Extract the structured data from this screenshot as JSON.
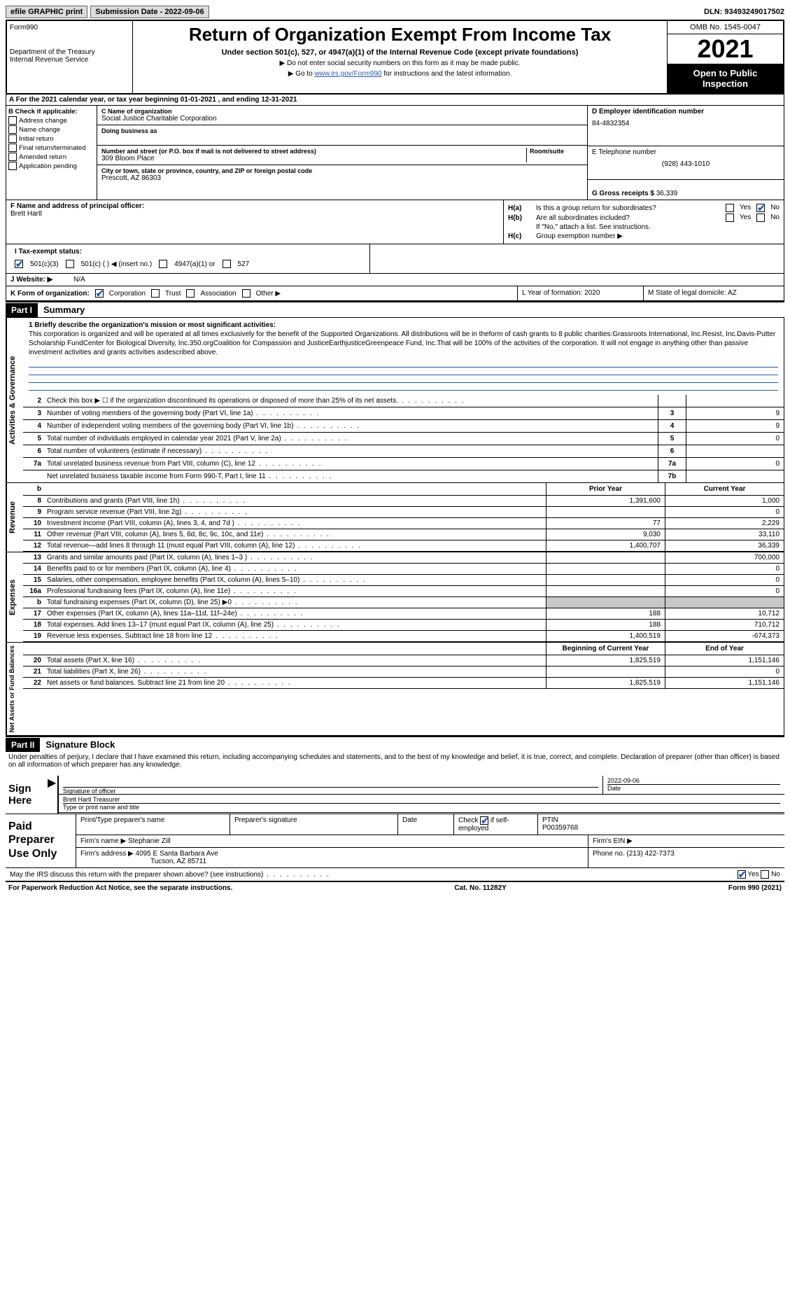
{
  "topbar": {
    "efile": "efile GRAPHIC print",
    "submission": "Submission Date - 2022-09-06",
    "dln": "DLN: 93493249017502"
  },
  "header": {
    "form": "Form",
    "form_num": "990",
    "title": "Return of Organization Exempt From Income Tax",
    "subtitle": "Under section 501(c), 527, or 4947(a)(1) of the Internal Revenue Code (except private foundations)",
    "note1": "▶ Do not enter social security numbers on this form as it may be made public.",
    "note2": "▶ Go to www.irs.gov/Form990 for instructions and the latest information.",
    "dept": "Department of the Treasury\nInternal Revenue Service",
    "omb": "OMB No. 1545-0047",
    "year": "2021",
    "open": "Open to Public Inspection"
  },
  "row_a": "A For the 2021 calendar year, or tax year beginning 01-01-2021    , and ending 12-31-2021",
  "col_b": {
    "label": "B Check if applicable:",
    "items": [
      "Address change",
      "Name change",
      "Initial return",
      "Final return/terminated",
      "Amended return",
      "Application pending"
    ]
  },
  "col_c": {
    "name_label": "C Name of organization",
    "name": "Social Justice Charitable Corporation",
    "dba_label": "Doing business as",
    "addr_label": "Number and street (or P.O. box if mail is not delivered to street address)",
    "room_label": "Room/suite",
    "addr": "309 Bloom Place",
    "city_label": "City or town, state or province, country, and ZIP or foreign postal code",
    "city": "Prescott, AZ  86303"
  },
  "col_d": {
    "ein_label": "D Employer identification number",
    "ein": "84-4832354",
    "phone_label": "E Telephone number",
    "phone": "(928) 443-1010",
    "gross_label": "G Gross receipts $",
    "gross": "36,339"
  },
  "row_f": {
    "label": "F Name and address of principal officer:",
    "name": "Brett Hartl"
  },
  "row_h": {
    "ha": "H(a)  Is this a group return for subordinates?",
    "hb": "H(b)  Are all subordinates included?",
    "hnote": "If \"No,\" attach a list. See instructions.",
    "hc": "H(c)  Group exemption number ▶",
    "yes": "Yes",
    "no": "No"
  },
  "row_i": {
    "label": "I   Tax-exempt status:",
    "o1": "501(c)(3)",
    "o2": "501(c) (  ) ◀ (insert no.)",
    "o3": "4947(a)(1) or",
    "o4": "527"
  },
  "row_j": {
    "label": "J   Website: ▶",
    "val": "N/A"
  },
  "row_k": {
    "label": "K Form of organization:",
    "o1": "Corporation",
    "o2": "Trust",
    "o3": "Association",
    "o4": "Other ▶",
    "l": "L Year of formation: 2020",
    "m": "M State of legal domicile: AZ"
  },
  "part1": {
    "num": "Part I",
    "title": "Summary"
  },
  "mission": {
    "label": "1  Briefly describe the organization's mission or most significant activities:",
    "text": "This corporation is organized and will be operated at all times exclusively for the benefit of the Supported Organizations. All distributions will be in theform of cash grants to 8 public charities:Grassroots International, Inc.Resist, Inc.Davis-Putter Scholarship FundCenter for Biological Diversity, Inc.350.orgCoalition for Compassion and JusticeEarthjusticeGreenpeace Fund, Inc.That will be 100% of the activities of the corporation. It will not engage in anything other than passive investment activities and grants activities asdescribed above."
  },
  "gov_lines": [
    {
      "n": "2",
      "t": "Check this box ▶ ☐ if the organization discontinued its operations or disposed of more than 25% of its net assets.",
      "c": "",
      "v": ""
    },
    {
      "n": "3",
      "t": "Number of voting members of the governing body (Part VI, line 1a)",
      "c": "3",
      "v": "9"
    },
    {
      "n": "4",
      "t": "Number of independent voting members of the governing body (Part VI, line 1b)",
      "c": "4",
      "v": "9"
    },
    {
      "n": "5",
      "t": "Total number of individuals employed in calendar year 2021 (Part V, line 2a)",
      "c": "5",
      "v": "0"
    },
    {
      "n": "6",
      "t": "Total number of volunteers (estimate if necessary)",
      "c": "6",
      "v": ""
    },
    {
      "n": "7a",
      "t": "Total unrelated business revenue from Part VIII, column (C), line 12",
      "c": "7a",
      "v": "0"
    },
    {
      "n": "",
      "t": "Net unrelated business taxable income from Form 990-T, Part I, line 11",
      "c": "7b",
      "v": ""
    }
  ],
  "rev_header": {
    "b": "b",
    "py": "Prior Year",
    "cy": "Current Year"
  },
  "rev_lines": [
    {
      "n": "8",
      "t": "Contributions and grants (Part VIII, line 1h)",
      "p": "1,391,600",
      "c": "1,000"
    },
    {
      "n": "9",
      "t": "Program service revenue (Part VIII, line 2g)",
      "p": "",
      "c": "0"
    },
    {
      "n": "10",
      "t": "Investment income (Part VIII, column (A), lines 3, 4, and 7d )",
      "p": "77",
      "c": "2,229"
    },
    {
      "n": "11",
      "t": "Other revenue (Part VIII, column (A), lines 5, 6d, 8c, 9c, 10c, and 11e)",
      "p": "9,030",
      "c": "33,110"
    },
    {
      "n": "12",
      "t": "Total revenue—add lines 8 through 11 (must equal Part VIII, column (A), line 12)",
      "p": "1,400,707",
      "c": "36,339"
    }
  ],
  "exp_lines": [
    {
      "n": "13",
      "t": "Grants and similar amounts paid (Part IX, column (A), lines 1–3 )",
      "p": "",
      "c": "700,000"
    },
    {
      "n": "14",
      "t": "Benefits paid to or for members (Part IX, column (A), line 4)",
      "p": "",
      "c": "0"
    },
    {
      "n": "15",
      "t": "Salaries, other compensation, employee benefits (Part IX, column (A), lines 5–10)",
      "p": "",
      "c": "0"
    },
    {
      "n": "16a",
      "t": "Professional fundraising fees (Part IX, column (A), line 11e)",
      "p": "",
      "c": "0"
    },
    {
      "n": "b",
      "t": "Total fundraising expenses (Part IX, column (D), line 25) ▶0",
      "p": "grey",
      "c": "grey"
    },
    {
      "n": "17",
      "t": "Other expenses (Part IX, column (A), lines 11a–11d, 11f–24e)",
      "p": "188",
      "c": "10,712"
    },
    {
      "n": "18",
      "t": "Total expenses. Add lines 13–17 (must equal Part IX, column (A), line 25)",
      "p": "188",
      "c": "710,712"
    },
    {
      "n": "19",
      "t": "Revenue less expenses. Subtract line 18 from line 12",
      "p": "1,400,519",
      "c": "-674,373"
    }
  ],
  "net_header": {
    "py": "Beginning of Current Year",
    "cy": "End of Year"
  },
  "net_lines": [
    {
      "n": "20",
      "t": "Total assets (Part X, line 16)",
      "p": "1,825,519",
      "c": "1,151,146"
    },
    {
      "n": "21",
      "t": "Total liabilities (Part X, line 26)",
      "p": "",
      "c": "0"
    },
    {
      "n": "22",
      "t": "Net assets or fund balances. Subtract line 21 from line 20",
      "p": "1,825,519",
      "c": "1,151,146"
    }
  ],
  "part2": {
    "num": "Part II",
    "title": "Signature Block"
  },
  "sig": {
    "decl": "Under penalties of perjury, I declare that I have examined this return, including accompanying schedules and statements, and to the best of my knowledge and belief, it is true, correct, and complete. Declaration of preparer (other than officer) is based on all information of which preparer has any knowledge.",
    "sign_here": "Sign Here",
    "sig_officer": "Signature of officer",
    "date": "Date",
    "date_val": "2022-09-06",
    "name": "Brett Hartl  Treasurer",
    "name_label": "Type or print name and title"
  },
  "prep": {
    "label": "Paid Preparer Use Only",
    "h1": "Print/Type preparer's name",
    "h2": "Preparer's signature",
    "h3": "Date",
    "h4": "Check ☑ if self-employed",
    "h5": "PTIN",
    "ptin": "P00359768",
    "firm_label": "Firm's name    ▶",
    "firm": "Stephanie Zill",
    "ein_label": "Firm's EIN ▶",
    "addr_label": "Firm's address ▶",
    "addr": "4095 E Santa Barbara Ave",
    "addr2": "Tucson, AZ  85711",
    "phone_label": "Phone no.",
    "phone": "(213) 422-7373"
  },
  "discuss": {
    "text": "May the IRS discuss this return with the preparer shown above? (see instructions)",
    "yes": "Yes",
    "no": "No"
  },
  "footer": {
    "left": "For Paperwork Reduction Act Notice, see the separate instructions.",
    "mid": "Cat. No. 11282Y",
    "right": "Form 990 (2021)"
  }
}
